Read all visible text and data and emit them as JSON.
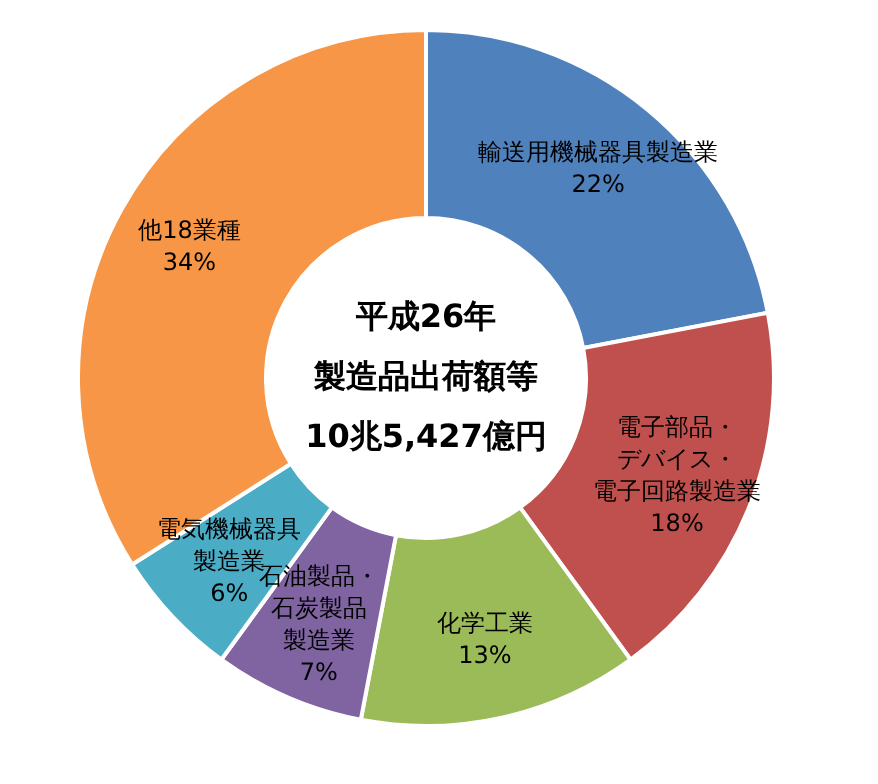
{
  "chart_data": {
    "type": "donut",
    "title": "平成26年",
    "subtitle": "製造品出荷額等",
    "annotations": [
      "10兆5,427億円"
    ],
    "categories": [
      "輸送用機械器具製造業",
      "電子部品・デバイス・電子回路製造業",
      "化学工業",
      "石油製品・石炭製品製造業",
      "電気機械器具製造業",
      "他18業種"
    ],
    "values": [
      22,
      18,
      13,
      7,
      6,
      34
    ],
    "value_labels": [
      "22%",
      "18%",
      "13%",
      "7%",
      "6%",
      "34%"
    ],
    "colors": [
      "#4f81bd",
      "#c0504d",
      "#9bbb59",
      "#8064a2",
      "#4bacc6",
      "#f79646"
    ]
  }
}
